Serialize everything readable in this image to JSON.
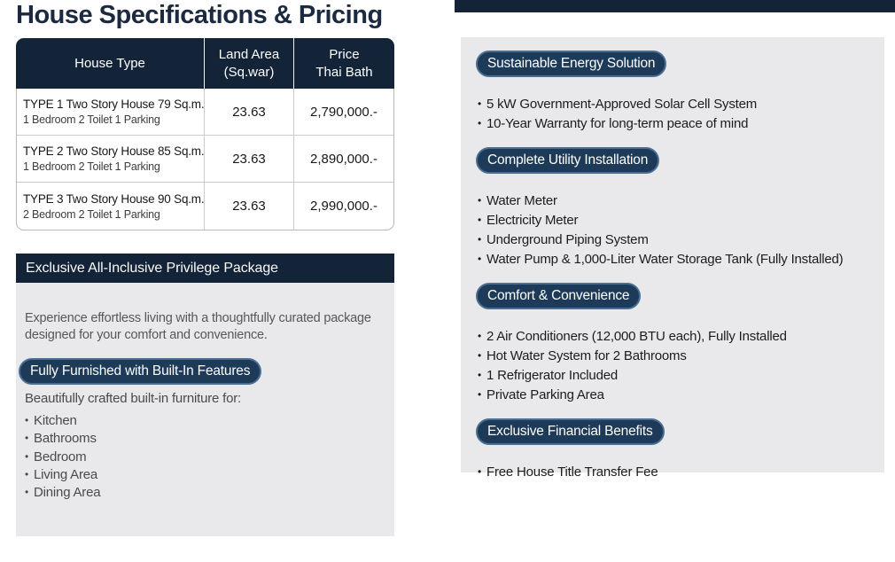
{
  "colors": {
    "navy": "#132338",
    "pill_navy": "#1d3b58",
    "pill_border": "#4a6d92",
    "panel_gray": "#e9e9eb"
  },
  "title": "House Specifications & Pricing",
  "pricing_table": {
    "headers": {
      "house_type": "House Type",
      "land_area_line1": "Land Area",
      "land_area_line2": "(Sq.war)",
      "price_line1": "Price",
      "price_line2": "Thai Bath"
    },
    "rows": [
      {
        "type": "TYPE 1 Two Story House 79 Sq.m.",
        "detail": "1 Bedroom 2 Toilet 1 Parking",
        "land_area": "23.63",
        "price": "2,790,000.-"
      },
      {
        "type": "TYPE 2 Two Story House 85 Sq.m.",
        "detail": "1 Bedroom 2 Toilet 1 Parking",
        "land_area": "23.63",
        "price": "2,890,000.-"
      },
      {
        "type": "TYPE 3 Two Story House 90 Sq.m.",
        "detail": "2 Bedroom 2 Toilet 1 Parking",
        "land_area": "23.63",
        "price": "2,990,000.-"
      }
    ]
  },
  "privilege": {
    "banner": "Exclusive All-Inclusive Privilege Package",
    "intro": "Experience effortless living with a thoughtfully curated package designed for your comfort and convenience.",
    "pill": "Fully Furnished with Built-In Features",
    "list_title": "Beautifully crafted built-in furniture for:",
    "items": [
      "Kitchen",
      "Bathrooms",
      "Bedroom",
      "Living Area",
      "Dining Area"
    ]
  },
  "features": {
    "sections": [
      {
        "pill": "Sustainable Energy Solution",
        "items": [
          "5 kW Government-Approved Solar Cell System",
          "10-Year Warranty for long-term peace of mind"
        ]
      },
      {
        "pill": "Complete Utility Installation",
        "items": [
          "Water Meter",
          "Electricity Meter",
          "Underground Piping System",
          "Water Pump & 1,000-Liter Water Storage Tank (Fully Installed)"
        ]
      },
      {
        "pill": "Comfort & Convenience",
        "items": [
          "2 Air Conditioners (12,000 BTU each), Fully Installed",
          "Hot Water System for 2 Bathrooms",
          "1 Refrigerator Included",
          "Private Parking Area"
        ]
      },
      {
        "pill": "Exclusive Financial Benefits",
        "items": [
          "Free House Title Transfer Fee"
        ]
      }
    ]
  }
}
